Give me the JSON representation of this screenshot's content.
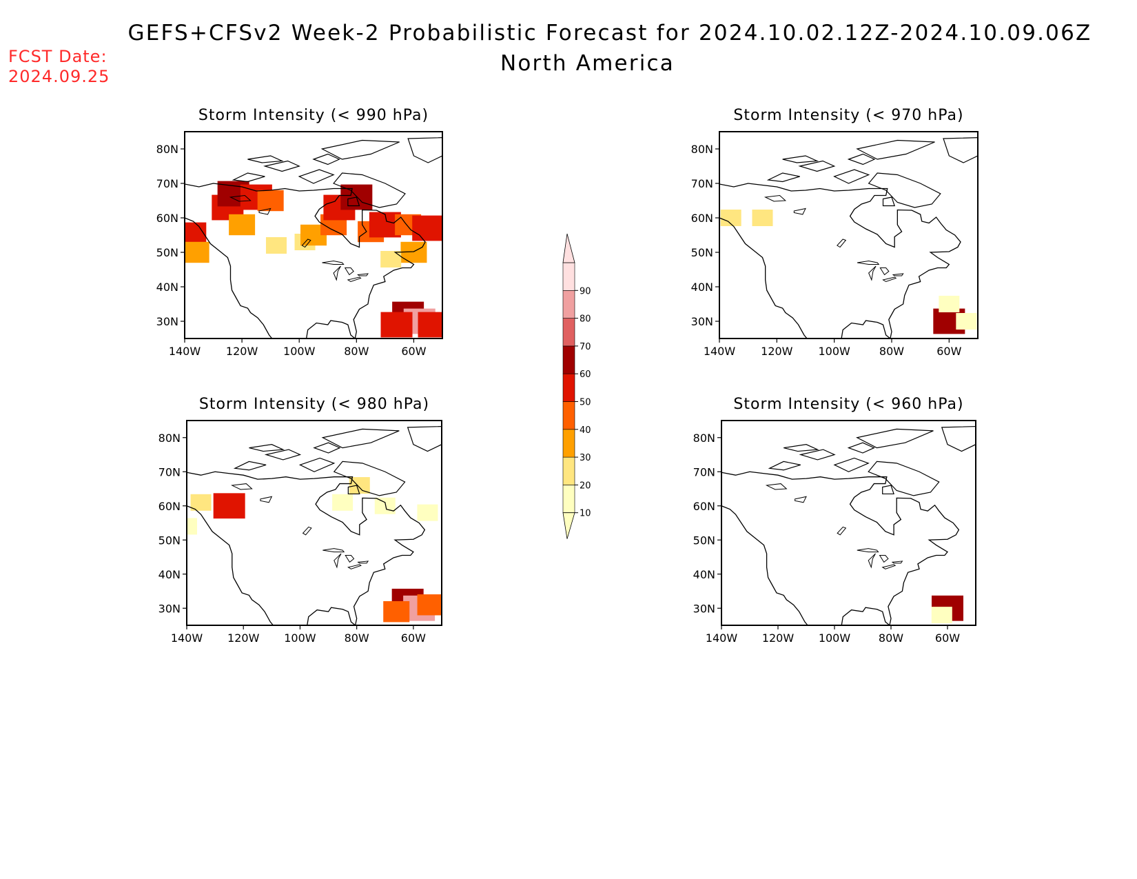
{
  "header": {
    "title": "GEFS+CFSv2 Week-2 Probabilistic Forecast for 2024.10.02.12Z-2024.10.09.06Z",
    "subtitle": "North America",
    "fcst_label": "FCST Date:",
    "fcst_date": "2024.09.25"
  },
  "lat_labels": [
    "80N",
    "70N",
    "60N",
    "50N",
    "40N",
    "30N"
  ],
  "lon_labels": [
    "140W",
    "120W",
    "100W",
    "80W",
    "60W"
  ],
  "panels": [
    {
      "title": "Storm Intensity (< 990 hPa)",
      "features": [
        {
          "lon": -125,
          "lat": 63,
          "level": 50
        },
        {
          "lon": -123,
          "lat": 67,
          "level": 60
        },
        {
          "lon": -115,
          "lat": 66,
          "level": 50
        },
        {
          "lon": -110,
          "lat": 65,
          "level": 40
        },
        {
          "lon": -120,
          "lat": 58,
          "level": 30
        },
        {
          "lon": -108,
          "lat": 52,
          "level": 20
        },
        {
          "lon": -138,
          "lat": 55,
          "level": 50
        },
        {
          "lon": -136,
          "lat": 50,
          "level": 30
        },
        {
          "lon": -98,
          "lat": 53,
          "level": 20
        },
        {
          "lon": -95,
          "lat": 55,
          "level": 30
        },
        {
          "lon": -88,
          "lat": 58,
          "level": 40
        },
        {
          "lon": -86,
          "lat": 63,
          "level": 50
        },
        {
          "lon": -80,
          "lat": 66,
          "level": 60
        },
        {
          "lon": -75,
          "lat": 56,
          "level": 40
        },
        {
          "lon": -70,
          "lat": 58,
          "level": 50
        },
        {
          "lon": -62,
          "lat": 58,
          "level": 40
        },
        {
          "lon": -55,
          "lat": 57,
          "level": 50
        },
        {
          "lon": -60,
          "lat": 50,
          "level": 30
        },
        {
          "lon": -68,
          "lat": 48,
          "level": 20
        },
        {
          "lon": -62,
          "lat": 32,
          "level": 60
        },
        {
          "lon": -58,
          "lat": 30,
          "level": 80
        },
        {
          "lon": -66,
          "lat": 29,
          "level": 50
        },
        {
          "lon": -53,
          "lat": 29,
          "level": 50
        }
      ]
    },
    {
      "title": "Storm Intensity (< 970 hPa)",
      "features": [
        {
          "lon": -136,
          "lat": 60,
          "level": 20
        },
        {
          "lon": -125,
          "lat": 60,
          "level": 20
        },
        {
          "lon": -60,
          "lat": 30,
          "level": 60
        },
        {
          "lon": -54,
          "lat": 30,
          "level": 10
        },
        {
          "lon": -60,
          "lat": 35,
          "level": 10
        }
      ]
    },
    {
      "title": "Storm Intensity (< 980 hPa)",
      "features": [
        {
          "lon": -125,
          "lat": 60,
          "level": 50
        },
        {
          "lon": -135,
          "lat": 61,
          "level": 20
        },
        {
          "lon": -140,
          "lat": 54,
          "level": 10
        },
        {
          "lon": -85,
          "lat": 61,
          "level": 10
        },
        {
          "lon": -79,
          "lat": 66,
          "level": 20
        },
        {
          "lon": -55,
          "lat": 58,
          "level": 10
        },
        {
          "lon": -70,
          "lat": 60,
          "level": 10
        },
        {
          "lon": -62,
          "lat": 32,
          "level": 60
        },
        {
          "lon": -58,
          "lat": 30,
          "level": 80
        },
        {
          "lon": -66,
          "lat": 29,
          "level": 40
        },
        {
          "lon": -54,
          "lat": 31,
          "level": 40
        }
      ]
    },
    {
      "title": "Storm Intensity (< 960 hPa)",
      "features": [
        {
          "lon": -60,
          "lat": 30,
          "level": 60
        },
        {
          "lon": -62,
          "lat": 28,
          "level": 10
        }
      ]
    }
  ],
  "colorbar": {
    "levels": [
      "10",
      "20",
      "30",
      "40",
      "50",
      "60",
      "70",
      "80",
      "90"
    ],
    "colors": [
      "#ffffc0",
      "#ffe680",
      "#ffa000",
      "#ff6000",
      "#e01400",
      "#a00000",
      "#e06060",
      "#f0a0a0",
      "#ffe0e0"
    ],
    "level_colors": {
      "10": "#ffffc0",
      "20": "#ffe680",
      "30": "#ffa000",
      "40": "#ff6000",
      "50": "#e01400",
      "60": "#a00000",
      "70": "#e06060",
      "80": "#f0a0a0",
      "90": "#ffe0e0"
    }
  }
}
